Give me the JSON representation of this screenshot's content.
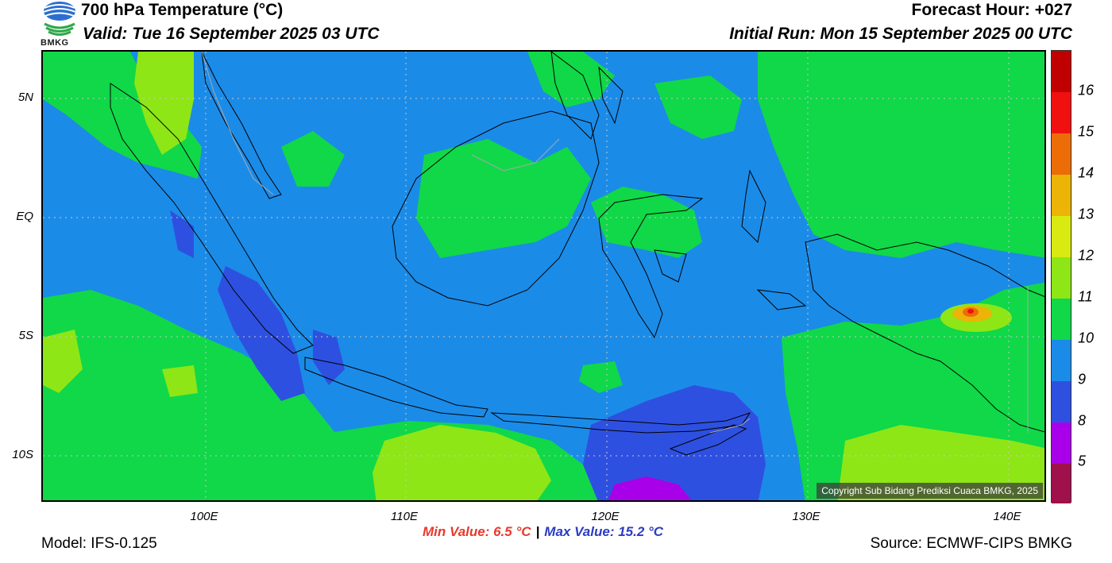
{
  "title": "700 hPa Temperature (°C)",
  "valid": "Valid: Tue 16 September 2025 03 UTC",
  "forecast_hour": "Forecast Hour: +027",
  "initial_run": "Initial Run: Mon 15 September 2025 00 UTC",
  "logo_text": "BMKG",
  "lat_labels": [
    "5N",
    "EQ",
    "5S",
    "10S"
  ],
  "lon_labels": [
    "100E",
    "110E",
    "120E",
    "130E",
    "140E"
  ],
  "colorbar": {
    "ticks": [
      "5",
      "8",
      "9",
      "10",
      "11",
      "12",
      "13",
      "14",
      "15",
      "16"
    ],
    "colors": [
      "#a0104a",
      "#a800e8",
      "#2e50e0",
      "#1b8be8",
      "#10d848",
      "#8ee616",
      "#d8ea10",
      "#ecb406",
      "#ec6c08",
      "#f01010",
      "#c00000"
    ]
  },
  "min_value": "Min Value: 6.5 °C",
  "separator": "|",
  "max_value": "Max Value: 15.2 °C",
  "model": "Model: IFS-0.125",
  "source": "Source: ECMWF-CIPS BMKG",
  "copyright": "Copyright Sub Bidang Prediksi Cuaca BMKG, 2025",
  "field_colors": {
    "t8": "#2e50e0",
    "t9": "#1b8be8",
    "t10": "#10d848",
    "t11": "#8ee616",
    "t13": "#ecb406",
    "t14": "#ec6c08",
    "t15": "#f01010",
    "t5": "#a800e8"
  }
}
